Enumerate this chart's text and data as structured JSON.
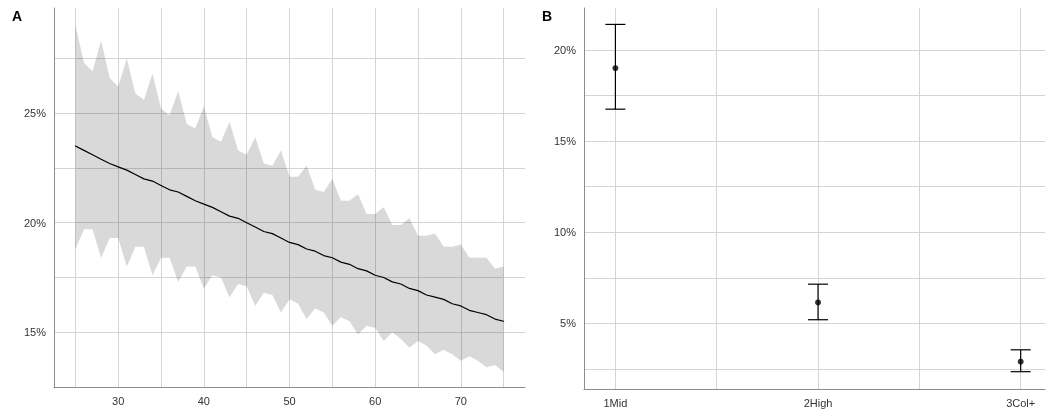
{
  "chart_data": [
    {
      "type": "line",
      "title": "A",
      "x": [
        25,
        26,
        27,
        28,
        29,
        30,
        31,
        32,
        33,
        34,
        35,
        36,
        37,
        38,
        39,
        40,
        41,
        42,
        43,
        44,
        45,
        46,
        47,
        48,
        49,
        50,
        51,
        52,
        53,
        54,
        55,
        56,
        57,
        58,
        59,
        60,
        61,
        62,
        63,
        64,
        65,
        66,
        67,
        68,
        69,
        70,
        71,
        72,
        73,
        74,
        75
      ],
      "series": [
        {
          "color": "#000000",
          "values": [
            23.5,
            23.3,
            23.1,
            22.9,
            22.7,
            22.55,
            22.4,
            22.2,
            22.0,
            21.9,
            21.7,
            21.5,
            21.4,
            21.2,
            21.0,
            20.85,
            20.7,
            20.5,
            20.3,
            20.2,
            20.0,
            19.8,
            19.6,
            19.5,
            19.3,
            19.1,
            19.0,
            18.8,
            18.7,
            18.5,
            18.4,
            18.2,
            18.1,
            17.9,
            17.8,
            17.6,
            17.5,
            17.3,
            17.2,
            17.0,
            16.9,
            16.7,
            16.6,
            16.5,
            16.3,
            16.2,
            16.0,
            15.9,
            15.8,
            15.6,
            15.5
          ],
          "upper": [
            29.0,
            27.3,
            26.9,
            28.3,
            26.6,
            26.2,
            27.5,
            25.9,
            25.6,
            26.8,
            25.2,
            24.9,
            26.0,
            24.5,
            24.3,
            25.3,
            23.9,
            23.7,
            24.6,
            23.3,
            23.1,
            23.9,
            22.7,
            22.6,
            23.3,
            22.1,
            22.1,
            22.6,
            21.5,
            21.4,
            22.0,
            21.0,
            21.0,
            21.3,
            20.4,
            20.4,
            20.7,
            19.9,
            19.9,
            20.2,
            19.4,
            19.4,
            19.5,
            18.9,
            18.9,
            19.0,
            18.4,
            18.4,
            18.4,
            17.9,
            18.0
          ],
          "lower": [
            18.8,
            19.7,
            19.7,
            18.4,
            19.3,
            19.3,
            18.0,
            18.9,
            18.9,
            17.6,
            18.4,
            18.4,
            17.3,
            18.0,
            18.0,
            17.0,
            17.6,
            17.5,
            16.6,
            17.2,
            17.1,
            16.2,
            16.8,
            16.7,
            15.9,
            16.5,
            16.3,
            15.6,
            16.1,
            15.9,
            15.3,
            15.7,
            15.5,
            14.9,
            15.3,
            15.2,
            14.6,
            15.0,
            14.7,
            14.3,
            14.6,
            14.4,
            14.0,
            14.2,
            14.0,
            13.7,
            13.9,
            13.7,
            13.4,
            13.5,
            13.2
          ]
        }
      ],
      "xlim": [
        22.5,
        77.5
      ],
      "xticks": [
        {
          "value": 25,
          "label": null
        },
        30,
        {
          "value": 35,
          "label": null
        },
        40,
        {
          "value": 45,
          "label": null
        },
        50,
        {
          "value": 55,
          "label": null
        },
        60,
        {
          "value": 65,
          "label": null
        },
        70,
        {
          "value": 75,
          "label": null
        }
      ],
      "ylim": [
        12.5,
        29.8
      ],
      "yticks": [
        {
          "value": 12.5,
          "label": null
        },
        {
          "value": 15,
          "label": "15%"
        },
        {
          "value": 17.5,
          "label": null
        },
        {
          "value": 20,
          "label": "20%"
        },
        {
          "value": 22.5,
          "label": null
        },
        {
          "value": 25,
          "label": "25%"
        },
        {
          "value": 27.5,
          "label": null
        }
      ],
      "grid": true
    },
    {
      "type": "scatter",
      "title": "B",
      "categories": [
        "1Mid",
        "2High",
        "3Col+"
      ],
      "series": [
        {
          "color": "#000000",
          "values": [
            19.0,
            6.15,
            2.9
          ],
          "errors": [
            [
              16.75,
              21.4
            ],
            [
              5.2,
              7.15
            ],
            [
              2.35,
              3.55
            ]
          ]
        }
      ],
      "ylim": [
        1.4,
        22.3
      ],
      "yticks": [
        {
          "value": 2.5,
          "label": null
        },
        {
          "value": 5,
          "label": "5%"
        },
        {
          "value": 7.5,
          "label": null
        },
        {
          "value": 10,
          "label": "10%"
        },
        {
          "value": 12.5,
          "label": null
        },
        {
          "value": 15,
          "label": "15%"
        },
        {
          "value": 17.5,
          "label": null
        },
        {
          "value": 20,
          "label": "20%"
        }
      ],
      "marker": "circle",
      "grid": true
    }
  ]
}
